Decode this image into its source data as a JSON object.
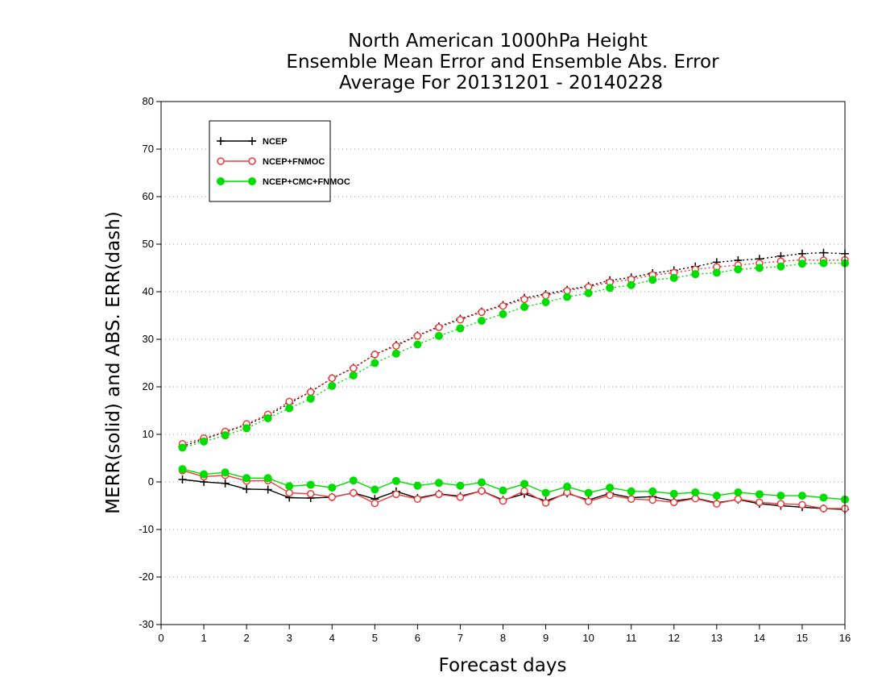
{
  "chart_data": {
    "type": "line",
    "title_lines": [
      "North American 1000hPa Height",
      "Ensemble Mean Error and Ensemble Abs. Error",
      "Average For 20131201 - 20140228"
    ],
    "xlabel": "Forecast days",
    "ylabel": "MERR(solid) and ABS. ERR(dash)",
    "xlim": [
      0,
      16
    ],
    "ylim": [
      -30,
      80
    ],
    "x_ticks": [
      0,
      1,
      2,
      3,
      4,
      5,
      6,
      7,
      8,
      9,
      10,
      11,
      12,
      13,
      14,
      15,
      16
    ],
    "y_ticks": [
      -30,
      -20,
      -10,
      0,
      10,
      20,
      30,
      40,
      50,
      60,
      70,
      80
    ],
    "grid": "horizontal-dotted",
    "legend_position": "top-left",
    "x": [
      0.5,
      1,
      1.5,
      2,
      2.5,
      3,
      3.5,
      4,
      4.5,
      5,
      5.5,
      6,
      6.5,
      7,
      7.5,
      8,
      8.5,
      9,
      9.5,
      10,
      10.5,
      11,
      11.5,
      12,
      12.5,
      13,
      13.5,
      14,
      14.5,
      15,
      15.5,
      16
    ],
    "series": [
      {
        "name": "NCEP",
        "color": "#000000",
        "marker": "plus",
        "merr": [
          0.5,
          0,
          -0.3,
          -1.5,
          -1.6,
          -3.3,
          -3.4,
          -3.2,
          -2.3,
          -3.6,
          -2.0,
          -3.4,
          -2.5,
          -3.0,
          -1.9,
          -3.8,
          -2.5,
          -4.0,
          -2.4,
          -3.8,
          -2.4,
          -3.3,
          -3.1,
          -4.0,
          -3.4,
          -4.4,
          -3.7,
          -4.6,
          -5.0,
          -5.3,
          -5.6,
          -5.8
        ],
        "abs_err": [
          7.5,
          9,
          10.5,
          12,
          14,
          16.5,
          19,
          21.8,
          24,
          26.8,
          28.8,
          30.8,
          32.7,
          34.3,
          35.8,
          37.2,
          38.7,
          39.5,
          40.4,
          41.2,
          42.4,
          43.0,
          43.9,
          44.5,
          45.3,
          46.2,
          46.6,
          46.9,
          47.5,
          48.0,
          48.2,
          48.0
        ]
      },
      {
        "name": "NCEP+FNMOC",
        "color": "#ee3b3b",
        "marker": "open-circle",
        "merr": [
          2.4,
          1.1,
          1.4,
          0.2,
          0.3,
          -2.3,
          -2.5,
          -3.2,
          -2.3,
          -4.5,
          -2.6,
          -3.6,
          -2.6,
          -3.2,
          -1.9,
          -4.0,
          -1.9,
          -4.4,
          -2.2,
          -4.1,
          -2.8,
          -3.6,
          -3.8,
          -4.3,
          -3.5,
          -4.6,
          -3.6,
          -4.3,
          -4.6,
          -4.8,
          -5.6,
          -5.6
        ],
        "abs_err": [
          8.0,
          9.2,
          10.6,
          12.2,
          14.2,
          16.9,
          18.9,
          21.8,
          23.9,
          26.8,
          28.6,
          30.7,
          32.5,
          34.1,
          35.7,
          37.0,
          38.4,
          39.2,
          40.2,
          41.0,
          42.0,
          42.6,
          43.5,
          44.0,
          44.7,
          45.2,
          45.6,
          46.0,
          46.4,
          46.7,
          46.6,
          46.7
        ]
      },
      {
        "name": "NCEP+CMC+FNMOC",
        "color": "#00dd00",
        "marker": "filled-circle",
        "merr": [
          2.7,
          1.6,
          2.0,
          0.8,
          0.8,
          -0.9,
          -0.6,
          -1.2,
          0.3,
          -1.6,
          0.2,
          -0.8,
          -0.2,
          -0.8,
          -0.1,
          -1.8,
          -0.4,
          -2.3,
          -1.0,
          -2.3,
          -1.2,
          -2.0,
          -2.0,
          -2.5,
          -2.2,
          -2.9,
          -2.2,
          -2.6,
          -2.9,
          -2.9,
          -3.3,
          -3.7
        ],
        "abs_err": [
          7.2,
          8.5,
          9.8,
          11.3,
          13.4,
          15.5,
          17.5,
          20.2,
          22.4,
          25.0,
          27.0,
          28.9,
          30.7,
          32.3,
          33.9,
          35.3,
          36.8,
          37.8,
          38.9,
          39.7,
          40.8,
          41.4,
          42.5,
          42.9,
          43.7,
          44.0,
          44.7,
          45.0,
          45.3,
          45.9,
          46.0,
          46.0
        ]
      }
    ]
  }
}
